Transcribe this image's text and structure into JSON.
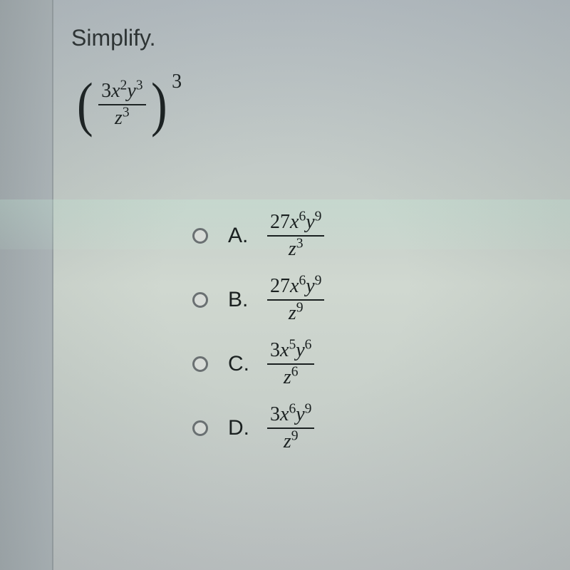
{
  "prompt": "Simplify.",
  "expression": {
    "numerator_coeff": "3",
    "num_var1": "x",
    "num_exp1": "2",
    "num_var2": "y",
    "num_exp2": "3",
    "denom_var": "z",
    "denom_exp": "3",
    "outer_exp": "3"
  },
  "options": [
    {
      "label": "A.",
      "numerator_coeff": "27",
      "num_var1": "x",
      "num_exp1": "6",
      "num_var2": "y",
      "num_exp2": "9",
      "denom_var": "z",
      "denom_exp": "3"
    },
    {
      "label": "B.",
      "numerator_coeff": "27",
      "num_var1": "x",
      "num_exp1": "6",
      "num_var2": "y",
      "num_exp2": "9",
      "denom_var": "z",
      "denom_exp": "9"
    },
    {
      "label": "C.",
      "numerator_coeff": "3",
      "num_var1": "x",
      "num_exp1": "5",
      "num_var2": "y",
      "num_exp2": "6",
      "denom_var": "z",
      "denom_exp": "6"
    },
    {
      "label": "D.",
      "numerator_coeff": "3",
      "num_var1": "x",
      "num_exp1": "6",
      "num_var2": "y",
      "num_exp2": "9",
      "denom_var": "z",
      "denom_exp": "9"
    }
  ]
}
